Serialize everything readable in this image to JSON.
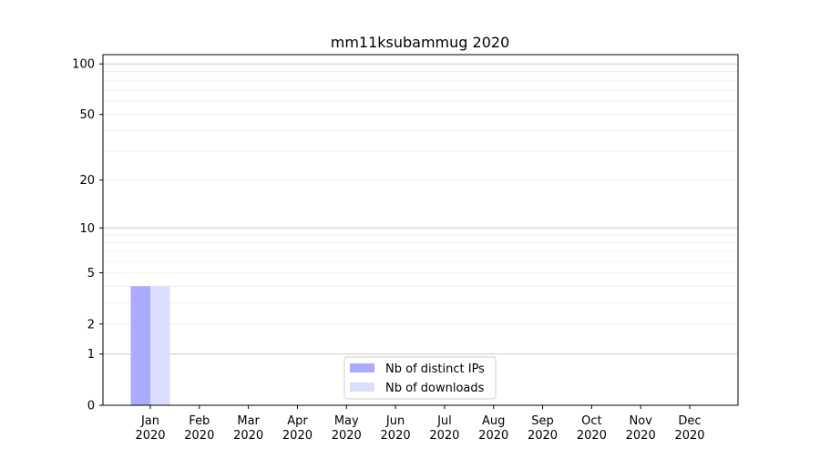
{
  "chart_data": {
    "type": "bar",
    "title": "mm11ksubammug 2020",
    "xlabel": "",
    "ylabel": "",
    "y_scale": "log(1+y)",
    "ylim": [
      0,
      113.5
    ],
    "y_ticks": [
      0,
      1,
      2,
      5,
      10,
      20,
      50,
      100
    ],
    "grid": true,
    "legend_position": "lower-center",
    "categories": [
      [
        "Jan",
        "2020"
      ],
      [
        "Feb",
        "2020"
      ],
      [
        "Mar",
        "2020"
      ],
      [
        "Apr",
        "2020"
      ],
      [
        "May",
        "2020"
      ],
      [
        "Jun",
        "2020"
      ],
      [
        "Jul",
        "2020"
      ],
      [
        "Aug",
        "2020"
      ],
      [
        "Sep",
        "2020"
      ],
      [
        "Oct",
        "2020"
      ],
      [
        "Nov",
        "2020"
      ],
      [
        "Dec",
        "2020"
      ]
    ],
    "series": [
      {
        "name": "Nb of distinct IPs",
        "color": "#aaaaff",
        "values": [
          4,
          0,
          0,
          0,
          0,
          0,
          0,
          0,
          0,
          0,
          0,
          0
        ]
      },
      {
        "name": "Nb of downloads",
        "color": "#ddddff",
        "values": [
          4,
          0,
          0,
          0,
          0,
          0,
          0,
          0,
          0,
          0,
          0,
          0
        ]
      }
    ]
  }
}
